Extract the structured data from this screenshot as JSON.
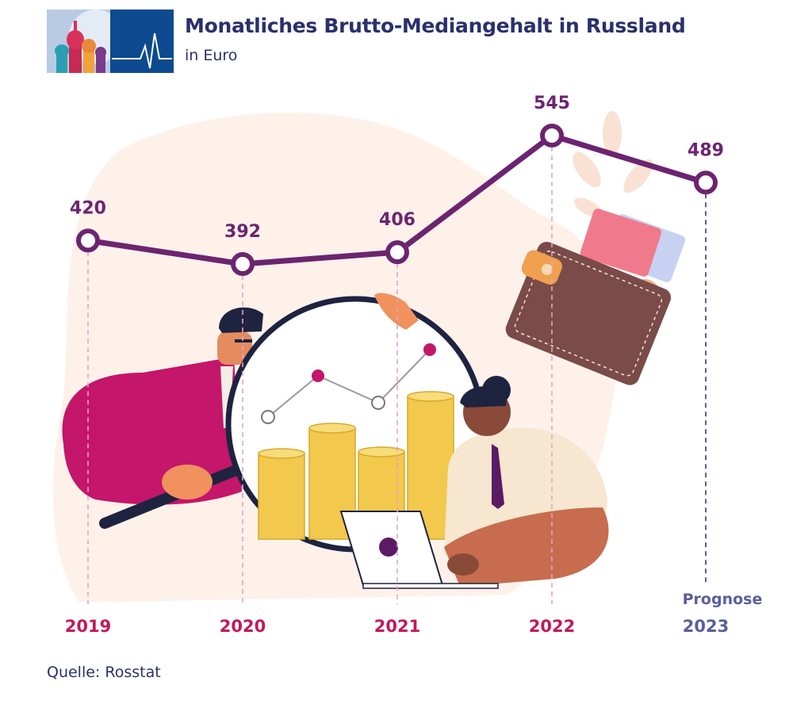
{
  "header": {
    "title": "Monatliches Brutto-Mediangehalt in Russland",
    "subtitle": "in Euro"
  },
  "footer": {
    "source": "Quelle: Rosstat"
  },
  "colors": {
    "line": "#6c2470",
    "actual_year": "#c2185b",
    "forecast": "#5a5e9a",
    "title": "#2b2f6b"
  },
  "chart_data": {
    "type": "line",
    "title": "Monatliches Brutto-Mediangehalt in Russland",
    "subtitle": "in Euro",
    "xlabel": "",
    "ylabel": "",
    "categories": [
      "2019",
      "2020",
      "2021",
      "2022",
      "2023"
    ],
    "values": [
      420,
      392,
      406,
      545,
      489
    ],
    "data_labels": [
      "420",
      "392",
      "406",
      "545",
      "489"
    ],
    "ylim": [
      392,
      545
    ],
    "grid": false,
    "forecast_index": 4,
    "forecast_label": "Prognose",
    "source": "Quelle: Rosstat"
  }
}
